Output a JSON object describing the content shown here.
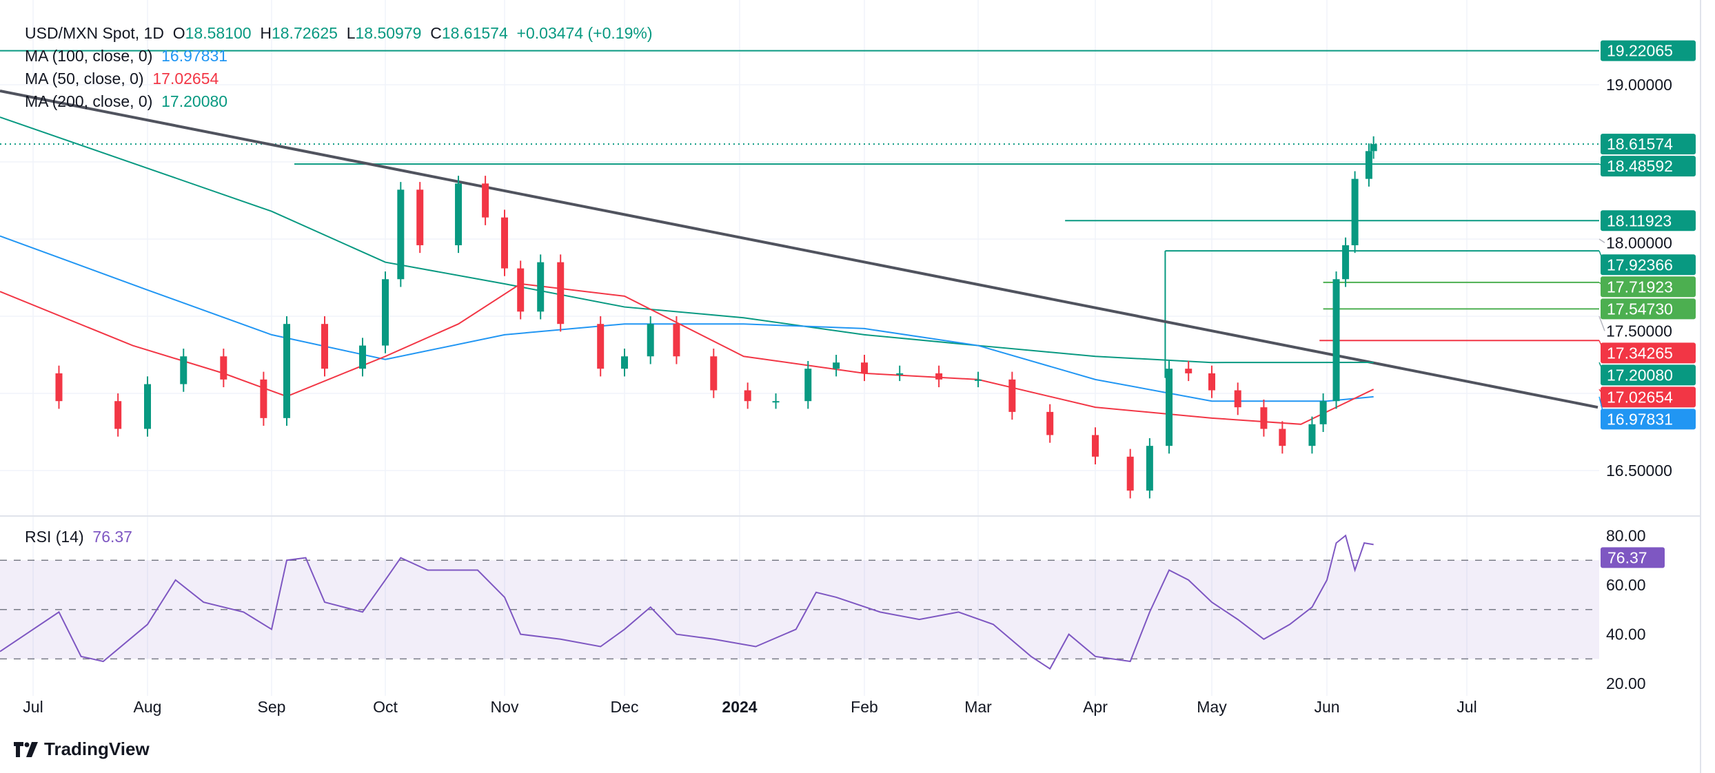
{
  "header": {
    "symbol": "USD/MXN Spot, 1D",
    "o_label": "O",
    "open": "18.58100",
    "h_label": "H",
    "high": "18.72625",
    "l_label": "L",
    "low": "18.50979",
    "c_label": "C",
    "close": "18.61574",
    "change": "+0.03474 (+0.19%)"
  },
  "indicators": [
    {
      "label": "MA (100, close, 0)",
      "value": "16.97831",
      "color": "#2196F3"
    },
    {
      "label": "MA (50, close, 0)",
      "value": "17.02654",
      "color": "#F23645"
    },
    {
      "label": "MA (200, close, 0)",
      "value": "17.20080",
      "color": "#089981"
    }
  ],
  "rsi": {
    "label": "RSI (14)",
    "value": "76.37",
    "color": "#7E57C2"
  },
  "logo": "TradingView",
  "chart_data": [
    {
      "type": "candlestick",
      "title": "USD/MXN Spot, 1D",
      "ylim": [
        16.2,
        19.45
      ],
      "grid": true,
      "y_ticks": [
        "19.00000",
        "18.00000",
        "17.50000",
        "16.50000"
      ],
      "x_ticks": [
        "Jul",
        "Aug",
        "Sep",
        "Oct",
        "Nov",
        "Dec",
        "2024",
        "Feb",
        "Mar",
        "Apr",
        "May",
        "Jun",
        "Jul"
      ],
      "closes": [
        [
          "2023-06-26",
          17.13
        ],
        [
          "2023-07-08",
          16.95
        ],
        [
          "2023-07-24",
          16.77
        ],
        [
          "2023-08-01",
          17.06
        ],
        [
          "2023-08-10",
          17.24
        ],
        [
          "2023-08-20",
          17.09
        ],
        [
          "2023-08-30",
          16.84
        ],
        [
          "2023-09-05",
          17.45
        ],
        [
          "2023-09-15",
          17.16
        ],
        [
          "2023-09-25",
          17.31
        ],
        [
          "2023-10-01",
          17.74
        ],
        [
          "2023-10-05",
          18.32
        ],
        [
          "2023-10-10",
          17.96
        ],
        [
          "2023-10-20",
          18.36
        ],
        [
          "2023-10-27",
          18.14
        ],
        [
          "2023-11-01",
          17.81
        ],
        [
          "2023-11-05",
          17.53
        ],
        [
          "2023-11-10",
          17.85
        ],
        [
          "2023-11-15",
          17.45
        ],
        [
          "2023-11-25",
          17.16
        ],
        [
          "2023-12-01",
          17.24
        ],
        [
          "2023-12-08",
          17.45
        ],
        [
          "2023-12-15",
          17.24
        ],
        [
          "2023-12-25",
          17.02
        ],
        [
          "2024-01-03",
          16.95
        ],
        [
          "2024-01-10",
          16.95
        ],
        [
          "2024-01-18",
          17.16
        ],
        [
          "2024-01-25",
          17.2
        ],
        [
          "2024-02-01",
          17.13
        ],
        [
          "2024-02-10",
          17.13
        ],
        [
          "2024-02-20",
          17.09
        ],
        [
          "2024-03-01",
          17.09
        ],
        [
          "2024-03-10",
          16.88
        ],
        [
          "2024-03-20",
          16.73
        ],
        [
          "2024-04-01",
          16.59
        ],
        [
          "2024-04-10",
          16.37
        ],
        [
          "2024-04-15",
          16.66
        ],
        [
          "2024-04-20",
          17.16
        ],
        [
          "2024-04-25",
          17.13
        ],
        [
          "2024-05-01",
          17.02
        ],
        [
          "2024-05-08",
          16.91
        ],
        [
          "2024-05-15",
          16.77
        ],
        [
          "2024-05-20",
          16.66
        ],
        [
          "2024-05-28",
          16.8
        ],
        [
          "2024-05-31",
          16.95
        ],
        [
          "2024-06-03",
          17.74
        ],
        [
          "2024-06-05",
          17.96
        ],
        [
          "2024-06-07",
          18.39
        ],
        [
          "2024-06-10",
          18.57
        ],
        [
          "2024-06-11",
          18.61574
        ]
      ],
      "moving_averages": [
        {
          "name": "MA (200, close, 0)",
          "color": "#089981",
          "points": [
            [
              "2023-06-22",
              18.79
            ],
            [
              "2023-09-01",
              18.18
            ],
            [
              "2023-10-01",
              17.85
            ],
            [
              "2023-11-01",
              17.71
            ],
            [
              "2023-12-01",
              17.56
            ],
            [
              "2024-01-02",
              17.49
            ],
            [
              "2024-02-01",
              17.38
            ],
            [
              "2024-03-01",
              17.31
            ],
            [
              "2024-04-01",
              17.24
            ],
            [
              "2024-05-01",
              17.2
            ],
            [
              "2024-06-11",
              17.2008
            ]
          ]
        },
        {
          "name": "MA (100, close, 0)",
          "color": "#2196F3",
          "points": [
            [
              "2023-06-22",
              18.02
            ],
            [
              "2023-08-01",
              17.67
            ],
            [
              "2023-09-01",
              17.38
            ],
            [
              "2023-10-01",
              17.22
            ],
            [
              "2023-11-01",
              17.38
            ],
            [
              "2023-12-01",
              17.45
            ],
            [
              "2024-01-02",
              17.45
            ],
            [
              "2024-02-01",
              17.42
            ],
            [
              "2024-03-01",
              17.31
            ],
            [
              "2024-04-01",
              17.09
            ],
            [
              "2024-05-01",
              16.95
            ],
            [
              "2024-06-01",
              16.95
            ],
            [
              "2024-06-11",
              16.97831
            ]
          ]
        },
        {
          "name": "MA (50, close, 0)",
          "color": "#F23645",
          "points": [
            [
              "2023-06-22",
              17.66
            ],
            [
              "2023-07-28",
              17.31
            ],
            [
              "2023-08-20",
              17.13
            ],
            [
              "2023-09-05",
              16.98
            ],
            [
              "2023-10-01",
              17.24
            ],
            [
              "2023-10-20",
              17.45
            ],
            [
              "2023-11-05",
              17.71
            ],
            [
              "2023-12-01",
              17.63
            ],
            [
              "2024-01-02",
              17.24
            ],
            [
              "2024-02-01",
              17.13
            ],
            [
              "2024-03-01",
              17.09
            ],
            [
              "2024-04-01",
              16.91
            ],
            [
              "2024-05-01",
              16.84
            ],
            [
              "2024-05-25",
              16.8
            ],
            [
              "2024-06-03",
              16.91
            ],
            [
              "2024-06-11",
              17.02654
            ]
          ]
        }
      ],
      "trendline": {
        "color": "#50535E",
        "points": [
          [
            "2023-06-22",
            18.96
          ],
          [
            "2024-08-03",
            16.91
          ]
        ]
      },
      "levels": [
        {
          "value": 19.22065,
          "label": "19.22065",
          "from": "2023-06-22",
          "color": "#089981"
        },
        {
          "value": 18.61574,
          "label": "18.61574",
          "from": "2023-06-22",
          "color": "#089981",
          "dotted": true
        },
        {
          "value": 18.48592,
          "label": "18.48592",
          "from": "2023-09-07",
          "color": "#089981"
        },
        {
          "value": 18.11923,
          "label": "18.11923",
          "from": "2024-03-24",
          "color": "#089981"
        },
        {
          "value": 17.92366,
          "label": "17.92366",
          "from": "2024-04-19",
          "color": "#089981"
        },
        {
          "value": 17.71923,
          "label": "17.71923",
          "from": "2024-05-31",
          "color": "#4CAF50"
        },
        {
          "value": 17.5473,
          "label": "17.54730",
          "from": "2024-05-31",
          "color": "#4CAF50"
        },
        {
          "value": 17.34265,
          "label": "17.34265",
          "from": "2024-05-30",
          "color": "#F23645"
        }
      ],
      "axis_badges": [
        {
          "label": "17.20080",
          "value": 17.2008,
          "color": "#089981"
        },
        {
          "label": "17.02654",
          "value": 17.02654,
          "color": "#F23645"
        },
        {
          "label": "16.97831",
          "value": 16.97831,
          "color": "#2196F3"
        }
      ],
      "colors": {
        "up": "#089981",
        "down": "#F23645"
      }
    },
    {
      "type": "line",
      "title": "RSI (14)",
      "ylim": [
        18,
        88
      ],
      "y_ticks": [
        "80.00",
        "60.00",
        "40.00",
        "20.00"
      ],
      "band": [
        30,
        70
      ],
      "midline": 50,
      "color": "#7E57C2",
      "points": [
        [
          "2023-06-22",
          33
        ],
        [
          "2023-07-08",
          49
        ],
        [
          "2023-07-14",
          31
        ],
        [
          "2023-07-20",
          29
        ],
        [
          "2023-08-01",
          44
        ],
        [
          "2023-08-08",
          62
        ],
        [
          "2023-08-15",
          53
        ],
        [
          "2023-08-25",
          49
        ],
        [
          "2023-09-01",
          42
        ],
        [
          "2023-09-05",
          70
        ],
        [
          "2023-09-10",
          71
        ],
        [
          "2023-09-15",
          53
        ],
        [
          "2023-09-25",
          49
        ],
        [
          "2023-10-01",
          62
        ],
        [
          "2023-10-05",
          71
        ],
        [
          "2023-10-12",
          66
        ],
        [
          "2023-10-25",
          66
        ],
        [
          "2023-11-01",
          55
        ],
        [
          "2023-11-05",
          40
        ],
        [
          "2023-11-15",
          38
        ],
        [
          "2023-11-25",
          35
        ],
        [
          "2023-12-01",
          42
        ],
        [
          "2023-12-08",
          51
        ],
        [
          "2023-12-15",
          40
        ],
        [
          "2023-12-25",
          38
        ],
        [
          "2024-01-05",
          35
        ],
        [
          "2024-01-15",
          42
        ],
        [
          "2024-01-20",
          57
        ],
        [
          "2024-01-25",
          55
        ],
        [
          "2024-02-05",
          49
        ],
        [
          "2024-02-15",
          46
        ],
        [
          "2024-02-25",
          49
        ],
        [
          "2024-03-05",
          44
        ],
        [
          "2024-03-15",
          31
        ],
        [
          "2024-03-20",
          26
        ],
        [
          "2024-03-25",
          40
        ],
        [
          "2024-04-01",
          31
        ],
        [
          "2024-04-10",
          29
        ],
        [
          "2024-04-15",
          49
        ],
        [
          "2024-04-20",
          66
        ],
        [
          "2024-04-25",
          62
        ],
        [
          "2024-05-01",
          53
        ],
        [
          "2024-05-08",
          46
        ],
        [
          "2024-05-15",
          38
        ],
        [
          "2024-05-22",
          44
        ],
        [
          "2024-05-28",
          51
        ],
        [
          "2024-06-01",
          62
        ],
        [
          "2024-06-03",
          77
        ],
        [
          "2024-06-05",
          80
        ],
        [
          "2024-06-07",
          66
        ],
        [
          "2024-06-09",
          77
        ],
        [
          "2024-06-11",
          76.37
        ]
      ]
    }
  ]
}
